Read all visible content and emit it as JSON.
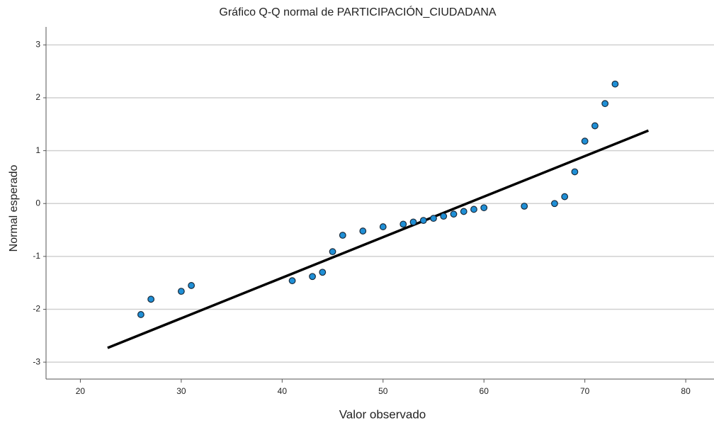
{
  "chart_data": {
    "type": "scatter",
    "title": "Gráfico Q-Q normal de PARTICIPACIÓN_CIUDADANA",
    "x_label": "Valor observado",
    "y_label": "Normal esperado",
    "x": [
      26,
      27,
      30,
      31,
      41,
      43,
      44,
      45,
      46,
      48,
      50,
      52,
      53,
      54,
      55,
      56,
      57,
      58,
      59,
      60,
      64,
      67,
      68,
      69,
      70,
      71,
      72,
      73
    ],
    "values": [
      -2.1,
      -1.81,
      -1.66,
      -1.55,
      -1.46,
      -1.38,
      -1.3,
      -0.91,
      -0.6,
      -0.52,
      -0.44,
      -0.39,
      -0.35,
      -0.32,
      -0.28,
      -0.24,
      -0.2,
      -0.15,
      -0.11,
      -0.08,
      -0.05,
      0.0,
      0.13,
      0.6,
      1.18,
      1.47,
      1.89,
      2.26
    ],
    "color": "#1f8fd6",
    "reference_line": {
      "x": [
        22.7,
        76.3
      ],
      "values": [
        -2.73,
        1.38
      ],
      "color": "#000000"
    },
    "xlim": [
      16.6,
      82.8
    ],
    "xticks": [
      20,
      30,
      40,
      50,
      60,
      70,
      80
    ],
    "ylim": [
      -3.32,
      3.34
    ],
    "yticks": [
      -3,
      -2,
      -1,
      0,
      1,
      2,
      3
    ],
    "grid": true
  }
}
